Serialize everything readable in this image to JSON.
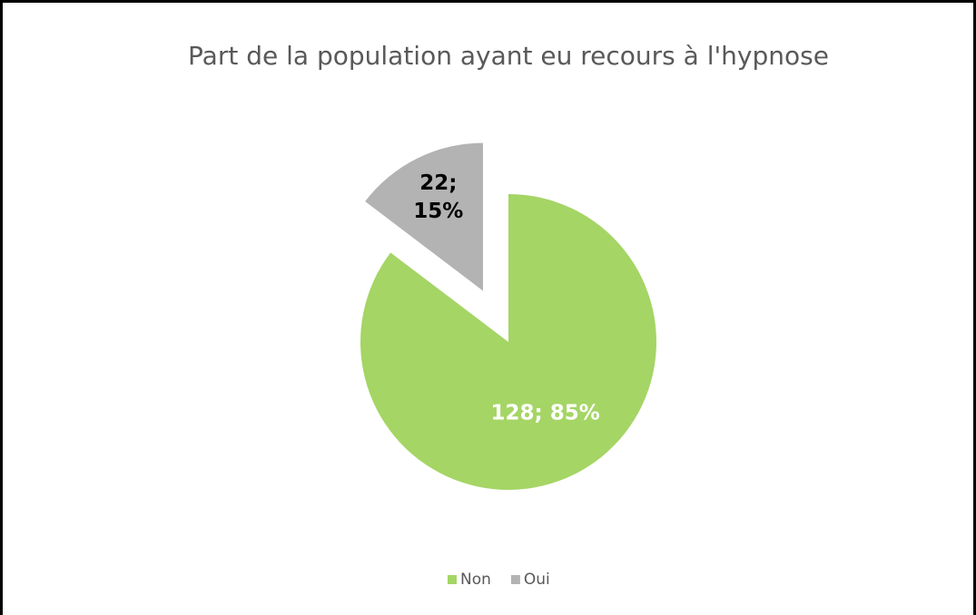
{
  "chart_data": {
    "type": "pie",
    "title": "Part de la population ayant eu recours à l'hypnose",
    "categories": [
      "Non",
      "Oui"
    ],
    "values": [
      128,
      22
    ],
    "value_labels": [
      "128; 85%",
      "22; 15%"
    ],
    "colors": [
      "#a5d565",
      "#b3b3b3"
    ],
    "label_colors": [
      "#ffffff",
      "#000000"
    ],
    "legend": "bottom"
  }
}
